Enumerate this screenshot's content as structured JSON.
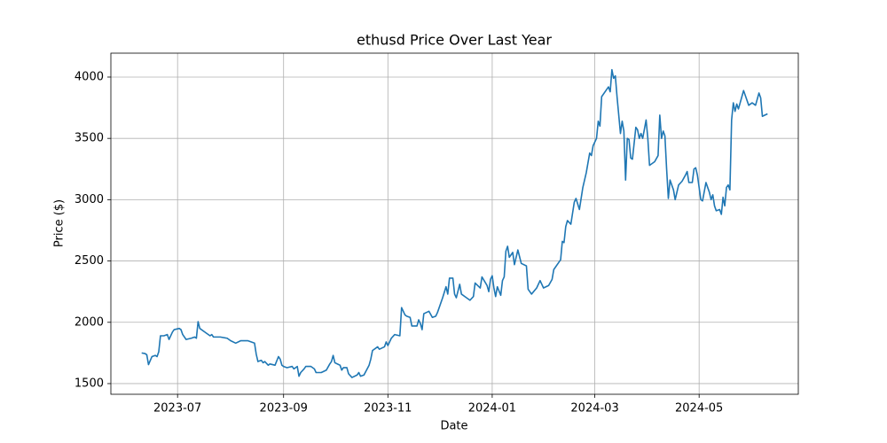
{
  "chart_data": {
    "type": "line",
    "title": "ethusd Price Over Last Year",
    "x_label": "Date",
    "y_label": "Price ($)",
    "color": "#1f77b4",
    "grid": true,
    "xlim": [
      -39,
      363
    ],
    "ylim": [
      1413,
      4195
    ],
    "xticks": [
      {
        "value": 0,
        "label": "2023-07"
      },
      {
        "value": 62,
        "label": "2023-09"
      },
      {
        "value": 123,
        "label": "2023-11"
      },
      {
        "value": 184,
        "label": "2024-01"
      },
      {
        "value": 244,
        "label": "2024-03"
      },
      {
        "value": 305,
        "label": "2024-05"
      }
    ],
    "yticks": [
      1500,
      2000,
      2500,
      3000,
      3500,
      4000
    ],
    "x": [
      -21,
      -19,
      -18,
      -17,
      -15,
      -13,
      -12,
      -11,
      -10,
      -8,
      -6,
      -5,
      -3,
      -2,
      1,
      2,
      3,
      5,
      8,
      10,
      11,
      12,
      13,
      16,
      19,
      20,
      21,
      23,
      25,
      29,
      31,
      34,
      37,
      41,
      45,
      46,
      47,
      49,
      50,
      51,
      53,
      54,
      57,
      59,
      60,
      61,
      62,
      64,
      67,
      68,
      70,
      71,
      72,
      74,
      75,
      78,
      80,
      81,
      84,
      87,
      89,
      90,
      91,
      92,
      95,
      96,
      97,
      99,
      100,
      102,
      105,
      106,
      107,
      109,
      112,
      113,
      114,
      117,
      118,
      121,
      122,
      123,
      125,
      127,
      130,
      131,
      133,
      134,
      136,
      137,
      140,
      141,
      142,
      143,
      144,
      147,
      149,
      151,
      152,
      155,
      157,
      158,
      159,
      161,
      162,
      163,
      165,
      166,
      169,
      171,
      173,
      174,
      177,
      178,
      181,
      182,
      183,
      184,
      185,
      186,
      187,
      189,
      190,
      191,
      192,
      193,
      194,
      196,
      197,
      199,
      201,
      204,
      205,
      207,
      210,
      212,
      214,
      217,
      219,
      220,
      223,
      224,
      225,
      226,
      227,
      228,
      230,
      232,
      233,
      235,
      237,
      239,
      241,
      242,
      243,
      245,
      246,
      247,
      248,
      251,
      252,
      253,
      254,
      255,
      256,
      257,
      259,
      260,
      261,
      262,
      263,
      264,
      265,
      266,
      268,
      269,
      270,
      271,
      272,
      274,
      275,
      276,
      279,
      281,
      282,
      283,
      284,
      285,
      286,
      287,
      288,
      290,
      291,
      293,
      295,
      297,
      298,
      299,
      301,
      302,
      303,
      304,
      306,
      307,
      309,
      311,
      312,
      313,
      314,
      315,
      317,
      318,
      319,
      320,
      321,
      322,
      323,
      324,
      325,
      326,
      327,
      328,
      330,
      331,
      332,
      334,
      336,
      338,
      340,
      341,
      342,
      345
    ],
    "values": [
      1750,
      1745,
      1735,
      1655,
      1720,
      1730,
      1720,
      1760,
      1890,
      1890,
      1900,
      1860,
      1920,
      1940,
      1950,
      1940,
      1900,
      1860,
      1870,
      1880,
      1870,
      2005,
      1950,
      1920,
      1890,
      1900,
      1880,
      1880,
      1880,
      1870,
      1850,
      1830,
      1850,
      1850,
      1830,
      1740,
      1680,
      1690,
      1670,
      1680,
      1650,
      1660,
      1650,
      1720,
      1700,
      1650,
      1640,
      1630,
      1640,
      1620,
      1640,
      1560,
      1590,
      1620,
      1640,
      1640,
      1620,
      1590,
      1590,
      1610,
      1660,
      1680,
      1730,
      1670,
      1650,
      1610,
      1630,
      1630,
      1580,
      1550,
      1570,
      1590,
      1560,
      1570,
      1650,
      1700,
      1770,
      1800,
      1780,
      1800,
      1840,
      1810,
      1870,
      1900,
      1890,
      2120,
      2060,
      2050,
      2040,
      1970,
      1970,
      2020,
      1990,
      1940,
      2070,
      2090,
      2040,
      2050,
      2080,
      2200,
      2290,
      2230,
      2360,
      2360,
      2230,
      2200,
      2310,
      2230,
      2200,
      2180,
      2210,
      2320,
      2280,
      2370,
      2300,
      2250,
      2350,
      2380,
      2280,
      2210,
      2290,
      2220,
      2340,
      2370,
      2580,
      2620,
      2530,
      2570,
      2470,
      2590,
      2480,
      2460,
      2270,
      2230,
      2280,
      2340,
      2280,
      2300,
      2350,
      2430,
      2490,
      2510,
      2660,
      2650,
      2780,
      2830,
      2800,
      2980,
      3010,
      2920,
      3100,
      3220,
      3380,
      3360,
      3440,
      3500,
      3640,
      3600,
      3840,
      3900,
      3920,
      3880,
      4060,
      3990,
      4010,
      3840,
      3540,
      3640,
      3560,
      3160,
      3500,
      3490,
      3340,
      3330,
      3590,
      3570,
      3500,
      3540,
      3500,
      3650,
      3500,
      3280,
      3310,
      3360,
      3690,
      3500,
      3560,
      3520,
      3250,
      3010,
      3160,
      3080,
      3000,
      3120,
      3150,
      3200,
      3230,
      3140,
      3140,
      3250,
      3260,
      3200,
      3000,
      2990,
      3140,
      3060,
      3000,
      3040,
      2950,
      2910,
      2920,
      2880,
      3020,
      2950,
      3100,
      3120,
      3080,
      3650,
      3790,
      3720,
      3780,
      3740,
      3840,
      3890,
      3850,
      3770,
      3790,
      3770,
      3870,
      3830,
      3680,
      3700
    ]
  }
}
